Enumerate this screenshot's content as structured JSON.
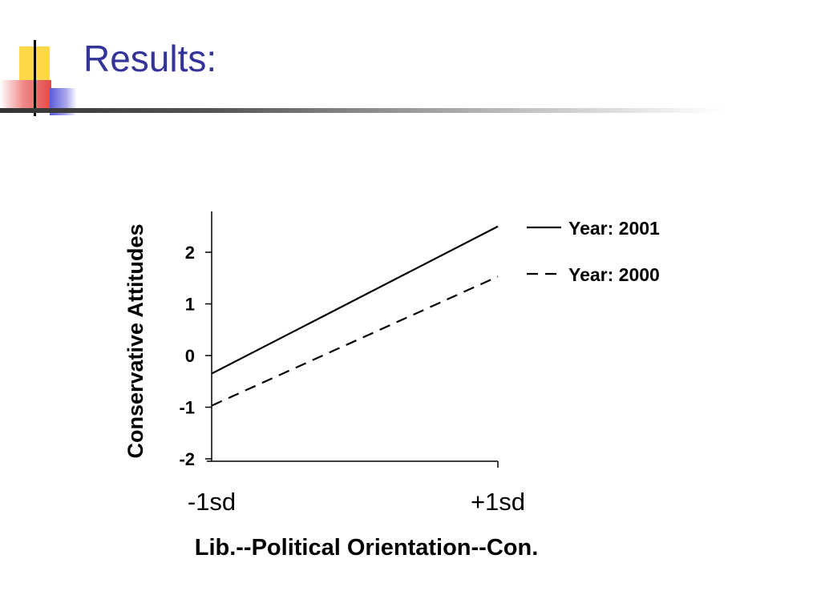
{
  "slide": {
    "title": "Results:"
  },
  "chart_data": {
    "type": "line",
    "x": [
      "-1sd",
      "+1sd"
    ],
    "series": [
      {
        "name": "Year: 2001",
        "values": [
          -0.35,
          2.5
        ],
        "style": "solid"
      },
      {
        "name": "Year: 2000",
        "values": [
          -0.97,
          1.53
        ],
        "style": "dashed"
      }
    ],
    "xlabel": "Lib.--Political Orientation--Con.",
    "ylabel": "Conservative Attitudes",
    "yticks": [
      2,
      1,
      0,
      -1,
      -2
    ],
    "ytick_labels": [
      "2",
      "1",
      "0",
      "-1",
      "-2"
    ],
    "ylim": [
      -2,
      2.8
    ],
    "grid": false,
    "legend_position": "right",
    "colors": {
      "line": "#000000",
      "title": "#333399"
    }
  }
}
